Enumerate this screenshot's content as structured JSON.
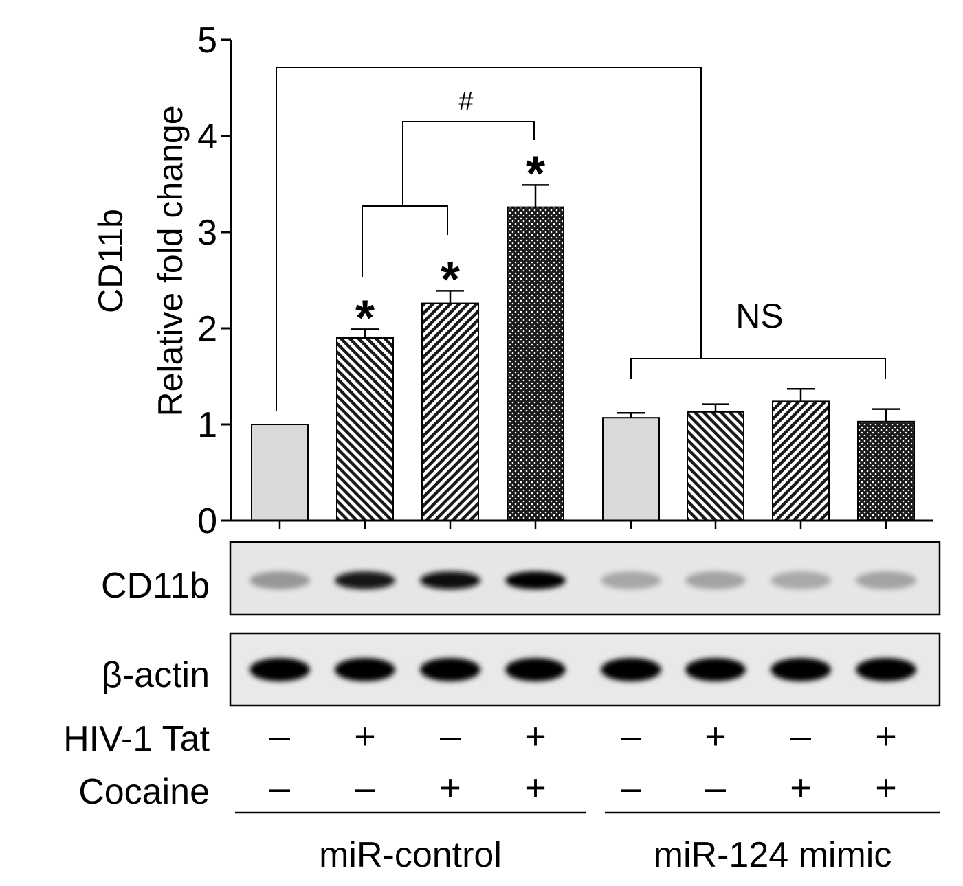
{
  "chart_data": {
    "type": "bar",
    "ylabel_line1": "CD11b",
    "ylabel_line2": "Relative fold change",
    "ylim": [
      0,
      5
    ],
    "yticks": [
      "0",
      "1",
      "2",
      "3",
      "4",
      "5"
    ],
    "bars": [
      {
        "value": 1.0,
        "error": 0.0,
        "pattern": "solid",
        "sig": ""
      },
      {
        "value": 1.9,
        "error": 0.09,
        "pattern": "diag-back",
        "sig": "*"
      },
      {
        "value": 2.26,
        "error": 0.13,
        "pattern": "diag-fwd",
        "sig": "*"
      },
      {
        "value": 3.26,
        "error": 0.23,
        "pattern": "dots",
        "sig": "*"
      },
      {
        "value": 1.07,
        "error": 0.05,
        "pattern": "solid",
        "sig": ""
      },
      {
        "value": 1.13,
        "error": 0.08,
        "pattern": "diag-back",
        "sig": ""
      },
      {
        "value": 1.24,
        "error": 0.13,
        "pattern": "diag-fwd",
        "sig": ""
      },
      {
        "value": 1.03,
        "error": 0.13,
        "pattern": "dots",
        "sig": ""
      }
    ],
    "annotations": {
      "hash": "#",
      "ns": "NS"
    },
    "colors": {
      "solid": "#d9d9d9",
      "pattern_bg": "#ffffff",
      "pattern_fg": "#1a1a1a"
    }
  },
  "blots": {
    "cd11b_label": "CD11b",
    "cd11b_intensity": [
      0.35,
      0.92,
      0.95,
      1.0,
      0.28,
      0.3,
      0.27,
      0.3
    ],
    "actin_label": "β-actin",
    "actin_intensity": [
      1.0,
      1.0,
      1.0,
      1.0,
      1.0,
      1.0,
      1.0,
      1.0
    ]
  },
  "conditions": {
    "tat_label": "HIV-1 Tat",
    "tat": [
      "–",
      "+",
      "–",
      "+",
      "–",
      "+",
      "–",
      "+"
    ],
    "cocaine_label": "Cocaine",
    "cocaine": [
      "–",
      "–",
      "+",
      "+",
      "–",
      "–",
      "+",
      "+"
    ],
    "group1": "miR-control",
    "group2": "miR-124 mimic"
  }
}
